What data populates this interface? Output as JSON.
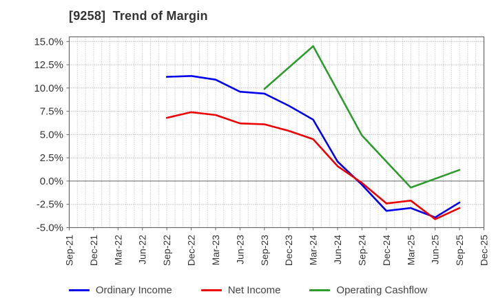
{
  "title": "[9258]  Trend of Margin",
  "chart_data": {
    "type": "line",
    "title": "[9258]  Trend of Margin",
    "xlabel": "",
    "ylabel": "",
    "grid": true,
    "legend_position": "bottom",
    "ylim": [
      -5,
      15.5
    ],
    "yticks": [
      {
        "value": 15,
        "label": "15.0%"
      },
      {
        "value": 12.5,
        "label": "12.5%"
      },
      {
        "value": 10,
        "label": "10.0%"
      },
      {
        "value": 7.5,
        "label": "7.5%"
      },
      {
        "value": 5,
        "label": "5.0%"
      },
      {
        "value": 2.5,
        "label": "2.5%"
      },
      {
        "value": 0,
        "label": "0.0%"
      },
      {
        "value": -2.5,
        "label": "-2.5%"
      },
      {
        "value": -5,
        "label": "-5.0%"
      }
    ],
    "categories": [
      "Sep-21",
      "Dec-21",
      "Mar-22",
      "Jun-22",
      "Sep-22",
      "Dec-22",
      "Mar-23",
      "Jun-23",
      "Sep-23",
      "Dec-23",
      "Mar-24",
      "Jun-24",
      "Sep-24",
      "Dec-24",
      "Mar-25",
      "Jun-25",
      "Sep-25",
      "Dec-25"
    ],
    "series": [
      {
        "name": "Ordinary Income",
        "color": "#0000ee",
        "values": [
          null,
          null,
          null,
          null,
          11.2,
          11.3,
          10.9,
          9.6,
          9.4,
          8.1,
          6.6,
          2.1,
          -0.4,
          -3.2,
          -2.9,
          -3.9,
          -2.3,
          null
        ]
      },
      {
        "name": "Net Income",
        "color": "#ee0000",
        "values": [
          null,
          null,
          null,
          null,
          6.8,
          7.4,
          7.1,
          6.2,
          6.1,
          5.4,
          4.5,
          1.6,
          -0.2,
          -2.4,
          -2.1,
          -4.1,
          -2.9,
          null
        ]
      },
      {
        "name": "Operating Cashflow",
        "color": "#2e9b2e",
        "values": [
          null,
          null,
          null,
          null,
          null,
          null,
          null,
          null,
          9.9,
          null,
          14.5,
          null,
          4.9,
          null,
          -0.7,
          null,
          1.2,
          null
        ]
      }
    ],
    "colors": {
      "text": "#333333",
      "grid_minor": "#b3b3b3",
      "grid_major": "#999999",
      "zero_line": "#808080",
      "border": "#666666"
    }
  }
}
